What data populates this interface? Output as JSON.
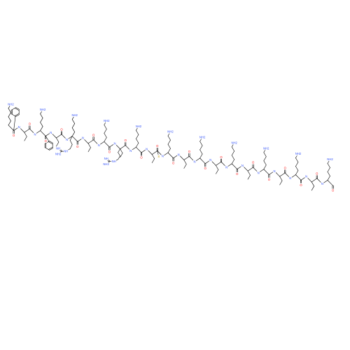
{
  "colors": {
    "bond": "#000000",
    "O": "#ff0d0d",
    "N": "#3050f8",
    "S": "#c8a000",
    "C": "#000000"
  },
  "atoms": [
    {
      "id": "a1",
      "el": "C",
      "x": 0,
      "y": 0
    },
    {
      "id": "a2",
      "el": "C",
      "x": 0,
      "y": 0
    },
    {
      "id": "a3",
      "el": "N",
      "label": "NH",
      "x": 0,
      "y": 0
    }
  ],
  "bonds": []
}
